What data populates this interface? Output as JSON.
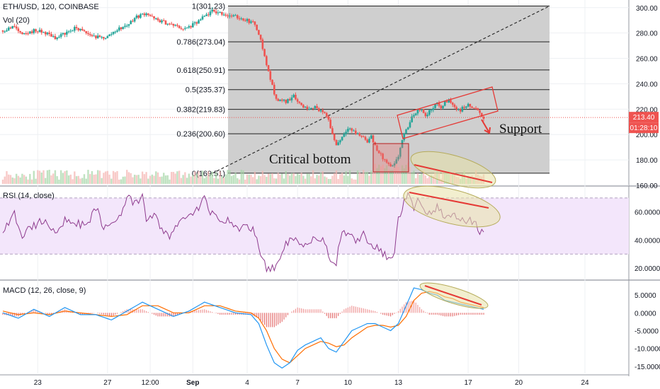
{
  "symbol_title": "ETH/USD, 120, COINBASE",
  "volume_label": "Vol (20)",
  "rsi_label": "RSI (14, close)",
  "macd_label": "MACD (12, 26, close, 9)",
  "price_badge": "213.40",
  "countdown_badge": "01:28:10",
  "annotations": {
    "critical_bottom": "Critical bottom",
    "support": "Support"
  },
  "colors": {
    "up": "#26a69a",
    "down": "#ef5350",
    "rsi_line": "#8e3b8e",
    "rsi_bg": "#f3e6fb",
    "macd_line": "#2196f3",
    "signal_line": "#ff6d00",
    "fib_fill": "#cfcfcf",
    "annotation_red": "#e53935",
    "ellipse_fill": "#e7e1a8"
  },
  "chart_data": [
    {
      "type": "candlestick",
      "title": "ETH/USD, 120, COINBASE",
      "x_tick_labels": [
        "23",
        "27",
        "12:00",
        "Sep",
        "4",
        "7",
        "10",
        "13",
        "17",
        "20",
        "24"
      ],
      "y_ticks": [
        "300.00",
        "280.00",
        "260.00",
        "240.00",
        "220.00",
        "200.00",
        "180.00",
        "160.00"
      ],
      "ylim": [
        160,
        306
      ],
      "current_price": 213.4,
      "fibonacci_retracement": [
        {
          "level": "1",
          "price": 301.23,
          "label": "1(301.23)"
        },
        {
          "level": "0.786",
          "price": 273.04,
          "label": "0.786(273.04)"
        },
        {
          "level": "0.618",
          "price": 250.91,
          "label": "0.618(250.91)"
        },
        {
          "level": "0.5",
          "price": 235.37,
          "label": "0.5(235.37)"
        },
        {
          "level": "0.382",
          "price": 219.83,
          "label": "0.382(219.83)"
        },
        {
          "level": "0.236",
          "price": 200.6,
          "label": "0.236(200.60)"
        },
        {
          "level": "0",
          "price": 169.51,
          "label": "0(169.51)"
        }
      ],
      "close_path": [
        [
          0,
          282
        ],
        [
          3,
          285
        ],
        [
          5,
          278
        ],
        [
          8,
          282
        ],
        [
          11,
          280
        ],
        [
          14,
          276
        ],
        [
          16,
          280
        ],
        [
          19,
          284
        ],
        [
          22,
          279
        ],
        [
          25,
          276
        ],
        [
          27,
          277
        ],
        [
          29,
          282
        ],
        [
          32,
          286
        ],
        [
          34,
          292
        ],
        [
          37,
          296
        ],
        [
          39,
          291
        ],
        [
          42,
          288
        ],
        [
          45,
          285
        ],
        [
          47,
          283
        ],
        [
          50,
          288
        ],
        [
          52,
          293
        ],
        [
          54,
          297
        ],
        [
          56,
          296
        ],
        [
          58,
          294
        ],
        [
          61,
          292
        ],
        [
          63,
          290
        ],
        [
          65,
          287
        ],
        [
          66,
          280
        ],
        [
          67,
          268
        ],
        [
          68,
          255
        ],
        [
          69,
          244
        ],
        [
          70,
          232
        ],
        [
          71,
          227
        ],
        [
          73,
          226
        ],
        [
          74,
          228
        ],
        [
          75,
          232
        ],
        [
          76,
          226
        ],
        [
          78,
          221
        ],
        [
          80,
          222
        ],
        [
          82,
          219
        ],
        [
          84,
          212
        ],
        [
          85,
          200
        ],
        [
          86,
          192
        ],
        [
          87,
          196
        ],
        [
          89,
          206
        ],
        [
          91,
          201
        ],
        [
          93,
          198
        ],
        [
          94,
          195
        ],
        [
          95,
          198
        ],
        [
          96,
          191
        ],
        [
          97,
          186
        ],
        [
          98,
          181
        ],
        [
          99,
          178
        ],
        [
          100,
          174
        ],
        [
          101,
          176
        ],
        [
          102,
          183
        ],
        [
          103,
          196
        ],
        [
          104,
          203
        ],
        [
          105,
          210
        ],
        [
          106,
          216
        ],
        [
          107,
          219
        ],
        [
          108,
          221
        ],
        [
          109,
          214
        ],
        [
          110,
          218
        ],
        [
          111,
          222
        ],
        [
          112,
          224
        ],
        [
          113,
          221
        ],
        [
          114,
          225
        ],
        [
          115,
          227
        ],
        [
          116,
          223
        ],
        [
          117,
          221
        ],
        [
          118,
          219
        ],
        [
          119,
          222
        ],
        [
          120,
          223
        ],
        [
          121,
          221
        ],
        [
          122,
          220
        ],
        [
          123,
          216
        ],
        [
          124,
          213.4
        ]
      ]
    },
    {
      "type": "line",
      "title": "RSI (14, close)",
      "y_ticks": [
        "60.0000",
        "40.0000",
        "20.0000"
      ],
      "ylim": [
        12,
        78
      ],
      "bands": [
        70,
        30
      ],
      "series": [
        {
          "values": [
            [
              0,
              45
            ],
            [
              3,
              58
            ],
            [
              5,
              44
            ],
            [
              8,
              50
            ],
            [
              11,
              55
            ],
            [
              14,
              43
            ],
            [
              16,
              56
            ],
            [
              19,
              52
            ],
            [
              22,
              50
            ],
            [
              24,
              64
            ],
            [
              26,
              48
            ],
            [
              28,
              52
            ],
            [
              30,
              57
            ],
            [
              32,
              70
            ],
            [
              34,
              66
            ],
            [
              36,
              70
            ],
            [
              37,
              55
            ],
            [
              39,
              58
            ],
            [
              41,
              48
            ],
            [
              43,
              42
            ],
            [
              45,
              51
            ],
            [
              47,
              57
            ],
            [
              49,
              60
            ],
            [
              51,
              64
            ],
            [
              52,
              72
            ],
            [
              53,
              60
            ],
            [
              55,
              57
            ],
            [
              57,
              55
            ],
            [
              59,
              52
            ],
            [
              61,
              48
            ],
            [
              63,
              50
            ],
            [
              65,
              46
            ],
            [
              66,
              35
            ],
            [
              67,
              26
            ],
            [
              68,
              20
            ],
            [
              69,
              18
            ],
            [
              70,
              21
            ],
            [
              71,
              26
            ],
            [
              73,
              38
            ],
            [
              75,
              42
            ],
            [
              77,
              36
            ],
            [
              79,
              40
            ],
            [
              81,
              42
            ],
            [
              83,
              38
            ],
            [
              84,
              28
            ],
            [
              85,
              22
            ],
            [
              86,
              24
            ],
            [
              87,
              42
            ],
            [
              89,
              46
            ],
            [
              91,
              40
            ],
            [
              93,
              44
            ],
            [
              95,
              36
            ],
            [
              97,
              34
            ],
            [
              98,
              30
            ],
            [
              99,
              28
            ],
            [
              100,
              26
            ],
            [
              101,
              32
            ],
            [
              102,
              55
            ],
            [
              103,
              64
            ],
            [
              104,
              70
            ],
            [
              105,
              72
            ],
            [
              106,
              64
            ],
            [
              107,
              71
            ],
            [
              108,
              62
            ],
            [
              110,
              60
            ],
            [
              112,
              64
            ],
            [
              114,
              57
            ],
            [
              115,
              56
            ],
            [
              117,
              58
            ],
            [
              118,
              53
            ],
            [
              120,
              55
            ],
            [
              122,
              52
            ],
            [
              123,
              47
            ],
            [
              124,
              44
            ]
          ]
        }
      ]
    },
    {
      "type": "line",
      "title": "MACD (12, 26, close, 9)",
      "y_ticks": [
        "5.0000",
        "0.0000",
        "-5.0000",
        "-10.0000",
        "-15.0000"
      ],
      "ylim": [
        -17,
        9
      ],
      "series": [
        {
          "name": "MACD",
          "values": [
            [
              0,
              0
            ],
            [
              4,
              -1.5
            ],
            [
              8,
              1
            ],
            [
              12,
              -1
            ],
            [
              16,
              1.5
            ],
            [
              20,
              -0.5
            ],
            [
              24,
              -0.5
            ],
            [
              28,
              -2
            ],
            [
              32,
              0.5
            ],
            [
              36,
              3
            ],
            [
              40,
              1
            ],
            [
              44,
              -1
            ],
            [
              48,
              0.5
            ],
            [
              52,
              3
            ],
            [
              56,
              1.5
            ],
            [
              60,
              0
            ],
            [
              64,
              -0.5
            ],
            [
              66,
              -3
            ],
            [
              68,
              -9
            ],
            [
              70,
              -14
            ],
            [
              72,
              -15.5
            ],
            [
              74,
              -14
            ],
            [
              76,
              -10.5
            ],
            [
              78,
              -9
            ],
            [
              80,
              -8
            ],
            [
              82,
              -7
            ],
            [
              84,
              -10
            ],
            [
              86,
              -11
            ],
            [
              88,
              -8
            ],
            [
              90,
              -5
            ],
            [
              92,
              -4
            ],
            [
              94,
              -3
            ],
            [
              96,
              -3
            ],
            [
              98,
              -4
            ],
            [
              100,
              -5
            ],
            [
              102,
              -3
            ],
            [
              104,
              2
            ],
            [
              106,
              7
            ],
            [
              108,
              6.5
            ],
            [
              110,
              5.5
            ],
            [
              112,
              5
            ],
            [
              114,
              3.5
            ],
            [
              116,
              3
            ],
            [
              118,
              2.5
            ],
            [
              120,
              2
            ],
            [
              122,
              1.5
            ],
            [
              124,
              1
            ]
          ]
        },
        {
          "name": "Signal",
          "values": [
            [
              0,
              0.5
            ],
            [
              4,
              -0.5
            ],
            [
              8,
              0
            ],
            [
              12,
              -0.5
            ],
            [
              16,
              0.5
            ],
            [
              20,
              0
            ],
            [
              24,
              -0.5
            ],
            [
              28,
              -1
            ],
            [
              32,
              -0.5
            ],
            [
              36,
              2
            ],
            [
              40,
              2
            ],
            [
              44,
              0
            ],
            [
              48,
              0
            ],
            [
              52,
              2
            ],
            [
              56,
              2
            ],
            [
              60,
              0.5
            ],
            [
              64,
              0
            ],
            [
              66,
              -1.5
            ],
            [
              68,
              -5
            ],
            [
              70,
              -10
            ],
            [
              72,
              -13
            ],
            [
              74,
              -14
            ],
            [
              76,
              -12
            ],
            [
              78,
              -10
            ],
            [
              80,
              -9
            ],
            [
              82,
              -8
            ],
            [
              84,
              -8.5
            ],
            [
              86,
              -9.5
            ],
            [
              88,
              -9
            ],
            [
              90,
              -7
            ],
            [
              92,
              -5.5
            ],
            [
              94,
              -4
            ],
            [
              96,
              -3.5
            ],
            [
              98,
              -3.5
            ],
            [
              100,
              -4
            ],
            [
              102,
              -3.5
            ],
            [
              104,
              -1
            ],
            [
              106,
              3.5
            ],
            [
              108,
              5.5
            ],
            [
              110,
              6
            ],
            [
              112,
              5.5
            ],
            [
              114,
              4.5
            ],
            [
              116,
              4
            ],
            [
              118,
              3
            ],
            [
              120,
              2.5
            ],
            [
              122,
              2
            ],
            [
              124,
              1.5
            ]
          ]
        }
      ]
    }
  ]
}
